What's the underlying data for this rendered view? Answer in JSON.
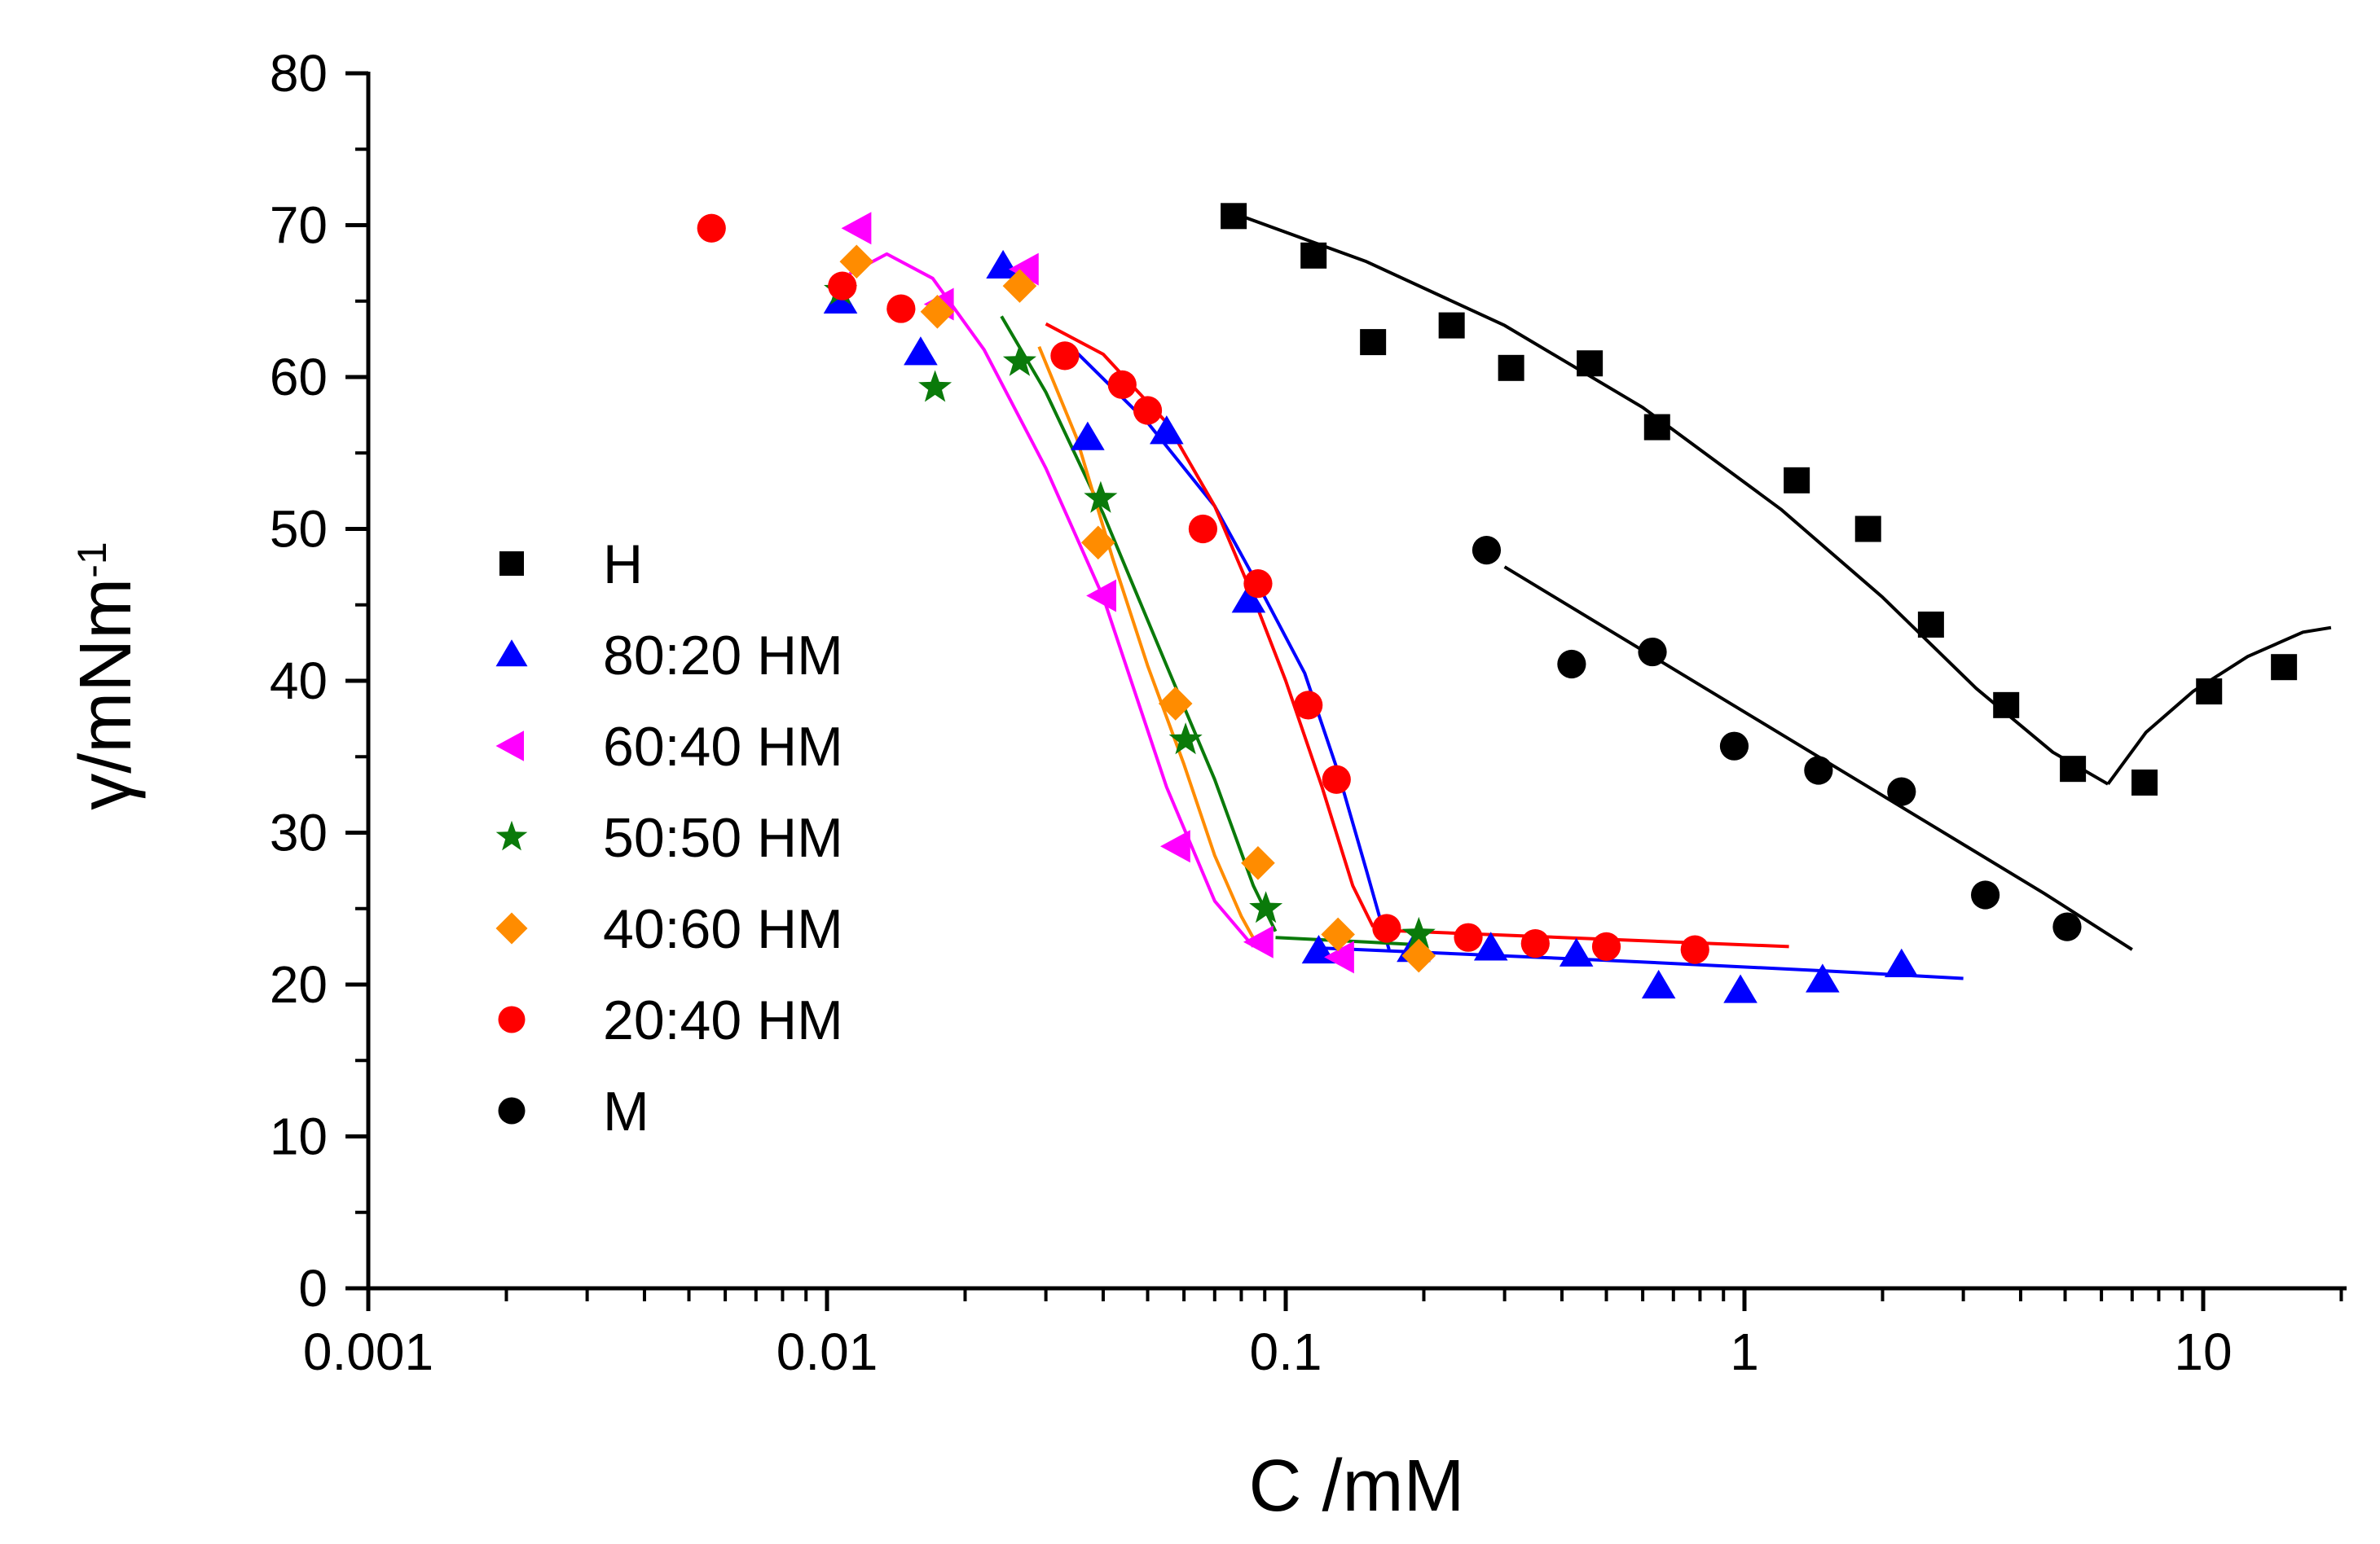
{
  "chart_data": {
    "type": "scatter",
    "xscale": "log",
    "xlim": [
      0.001,
      20
    ],
    "ylim": [
      0,
      80
    ],
    "xlabel": "C /mM",
    "ylabel_main": "γ/mNm",
    "ylabel_sup": "-1",
    "xticks": [
      {
        "value": 0.001,
        "label": "0.001"
      },
      {
        "value": 0.01,
        "label": "0.01"
      },
      {
        "value": 0.1,
        "label": "0.1"
      },
      {
        "value": 1,
        "label": "1"
      },
      {
        "value": 10,
        "label": "10"
      }
    ],
    "yticks": [
      {
        "value": 0,
        "label": "0"
      },
      {
        "value": 10,
        "label": "10"
      },
      {
        "value": 20,
        "label": "20"
      },
      {
        "value": 30,
        "label": "30"
      },
      {
        "value": 40,
        "label": "40"
      },
      {
        "value": 50,
        "label": "50"
      },
      {
        "value": 60,
        "label": "60"
      },
      {
        "value": 70,
        "label": "70"
      },
      {
        "value": 80,
        "label": "80"
      }
    ],
    "grid": false,
    "legend_position": "left",
    "series": [
      {
        "name": "H",
        "marker": "square",
        "color": "#000000",
        "points": [
          [
            0.077,
            70.6
          ],
          [
            0.115,
            68.0
          ],
          [
            0.155,
            62.3
          ],
          [
            0.23,
            63.4
          ],
          [
            0.31,
            60.6
          ],
          [
            0.46,
            60.9
          ],
          [
            0.645,
            56.7
          ],
          [
            1.3,
            53.2
          ],
          [
            1.86,
            50.0
          ],
          [
            2.55,
            43.7
          ],
          [
            3.72,
            38.4
          ],
          [
            5.2,
            34.2
          ],
          [
            7.45,
            33.3
          ],
          [
            10.3,
            39.3
          ],
          [
            15.0,
            40.9
          ]
        ],
        "fits": [
          [
            [
              0.08,
              70.6
            ],
            [
              0.15,
              67.6
            ],
            [
              0.3,
              63.4
            ],
            [
              0.6,
              58.0
            ],
            [
              1.2,
              51.3
            ],
            [
              2.0,
              45.5
            ],
            [
              3.2,
              39.5
            ],
            [
              4.7,
              35.3
            ],
            [
              6.2,
              33.2
            ]
          ],
          [
            [
              6.2,
              33.2
            ],
            [
              7.5,
              36.6
            ],
            [
              9.5,
              39.3
            ],
            [
              12.5,
              41.6
            ],
            [
              16.5,
              43.2
            ],
            [
              19.0,
              43.5
            ]
          ]
        ]
      },
      {
        "name": "80:20 HM",
        "marker": "triangle-up",
        "color": "#0000ff",
        "points": [
          [
            0.0107,
            65.0
          ],
          [
            0.016,
            61.6
          ],
          [
            0.0242,
            67.3
          ],
          [
            0.037,
            56.0
          ],
          [
            0.055,
            56.4
          ],
          [
            0.083,
            45.3
          ],
          [
            0.118,
            22.2
          ],
          [
            0.19,
            22.3
          ],
          [
            0.28,
            22.4
          ],
          [
            0.43,
            22.0
          ],
          [
            0.65,
            19.9
          ],
          [
            0.98,
            19.6
          ],
          [
            1.48,
            20.3
          ],
          [
            2.2,
            21.3
          ]
        ],
        "fits": [
          [
            [
              0.034,
              62.0
            ],
            [
              0.05,
              57.0
            ],
            [
              0.07,
              51.5
            ],
            [
              0.09,
              45.5
            ],
            [
              0.11,
              40.5
            ],
            [
              0.13,
              34.0
            ],
            [
              0.15,
              27.5
            ],
            [
              0.16,
              24.5
            ],
            [
              0.168,
              22.3
            ]
          ],
          [
            [
              0.12,
              22.4
            ],
            [
              0.5,
              21.6
            ],
            [
              1.5,
              20.9
            ],
            [
              3.0,
              20.4
            ]
          ]
        ]
      },
      {
        "name": "60:40 HM",
        "marker": "triangle-left",
        "color": "#ff00ff",
        "points": [
          [
            0.0117,
            69.8
          ],
          [
            0.0177,
            64.8
          ],
          [
            0.0271,
            67.1
          ],
          [
            0.04,
            45.6
          ],
          [
            0.058,
            29.1
          ],
          [
            0.088,
            22.8
          ],
          [
            0.132,
            21.8
          ]
        ],
        "fits": [
          [
            [
              0.0112,
              66.8
            ],
            [
              0.0135,
              68.1
            ],
            [
              0.017,
              66.5
            ],
            [
              0.022,
              61.8
            ],
            [
              0.03,
              54.0
            ],
            [
              0.04,
              45.5
            ],
            [
              0.055,
              33.0
            ],
            [
              0.07,
              25.5
            ],
            [
              0.085,
              22.5
            ]
          ]
        ]
      },
      {
        "name": "50:50 HM",
        "marker": "star",
        "color": "#0a7a0a",
        "points": [
          [
            0.0107,
            65.7
          ],
          [
            0.0172,
            59.3
          ],
          [
            0.0263,
            61.0
          ],
          [
            0.0395,
            52.0
          ],
          [
            0.0605,
            36.1
          ],
          [
            0.0905,
            25.0
          ],
          [
            0.195,
            23.3
          ]
        ],
        "fits": [
          [
            [
              0.024,
              64.0
            ],
            [
              0.03,
              59.0
            ],
            [
              0.04,
              51.0
            ],
            [
              0.055,
              41.0
            ],
            [
              0.07,
              33.5
            ],
            [
              0.085,
              26.5
            ],
            [
              0.095,
              23.5
            ]
          ],
          [
            [
              0.095,
              23.1
            ],
            [
              0.15,
              22.8
            ],
            [
              0.2,
              22.6
            ]
          ]
        ]
      },
      {
        "name": "40:60 HM",
        "marker": "diamond",
        "color": "#ff8c00",
        "points": [
          [
            0.0116,
            67.6
          ],
          [
            0.0174,
            64.3
          ],
          [
            0.0263,
            66.0
          ],
          [
            0.039,
            49.1
          ],
          [
            0.0575,
            38.5
          ],
          [
            0.087,
            28.0
          ],
          [
            0.13,
            23.3
          ],
          [
            0.195,
            21.9
          ]
        ],
        "fits": [
          [
            [
              0.029,
              62.0
            ],
            [
              0.035,
              56.0
            ],
            [
              0.042,
              48.0
            ],
            [
              0.05,
              41.0
            ],
            [
              0.06,
              34.5
            ],
            [
              0.07,
              28.5
            ],
            [
              0.08,
              24.5
            ],
            [
              0.087,
              22.5
            ]
          ]
        ]
      },
      {
        "name": "20:40 HM",
        "marker": "circle",
        "color": "#ff0000",
        "points": [
          [
            0.0056,
            69.8
          ],
          [
            0.0108,
            66.0
          ],
          [
            0.0145,
            64.5
          ],
          [
            0.033,
            61.4
          ],
          [
            0.044,
            59.5
          ],
          [
            0.05,
            57.8
          ],
          [
            0.066,
            50.0
          ],
          [
            0.087,
            46.4
          ],
          [
            0.112,
            38.4
          ],
          [
            0.129,
            33.5
          ],
          [
            0.166,
            23.7
          ],
          [
            0.25,
            23.1
          ],
          [
            0.35,
            22.7
          ],
          [
            0.5,
            22.5
          ],
          [
            0.78,
            22.3
          ]
        ],
        "fits": [
          [
            [
              0.03,
              63.5
            ],
            [
              0.04,
              61.5
            ],
            [
              0.055,
              57.0
            ],
            [
              0.07,
              51.5
            ],
            [
              0.085,
              45.5
            ],
            [
              0.1,
              40.0
            ],
            [
              0.12,
              33.0
            ],
            [
              0.14,
              26.5
            ],
            [
              0.155,
              23.8
            ]
          ],
          [
            [
              0.155,
              23.6
            ],
            [
              0.4,
              23.1
            ],
            [
              1.25,
              22.5
            ]
          ]
        ]
      },
      {
        "name": "M",
        "marker": "circle",
        "color": "#000000",
        "points": [
          [
            0.274,
            48.6
          ],
          [
            0.42,
            41.1
          ],
          [
            0.63,
            41.9
          ],
          [
            0.95,
            35.7
          ],
          [
            1.45,
            34.1
          ],
          [
            2.2,
            32.7
          ],
          [
            3.35,
            25.9
          ],
          [
            5.05,
            23.8
          ]
        ],
        "fits": [
          [
            [
              0.3,
              47.5
            ],
            [
              0.6,
              42.0
            ],
            [
              1.2,
              36.5
            ],
            [
              2.4,
              31.0
            ],
            [
              4.5,
              26.0
            ],
            [
              7.0,
              22.3
            ]
          ]
        ]
      }
    ]
  }
}
